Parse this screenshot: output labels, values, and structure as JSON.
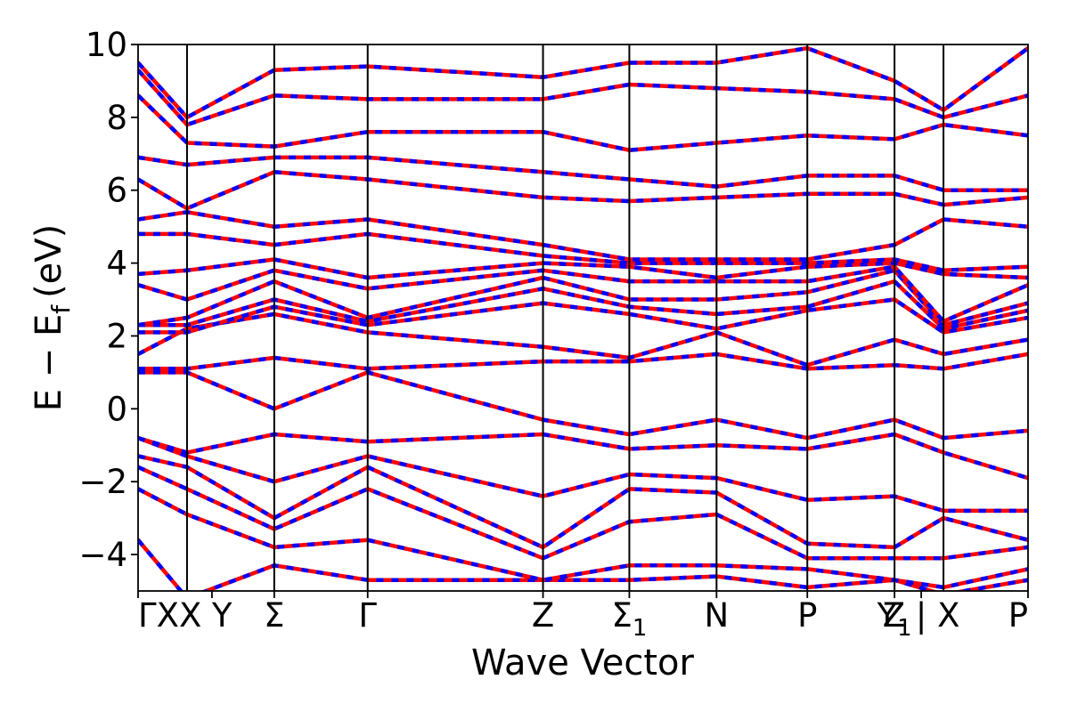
{
  "chart_data": {
    "type": "line",
    "title": "",
    "xlabel": "Wave Vector",
    "ylabel_main": "E − E",
    "ylabel_sub": "f",
    "ylabel_unit": "(eV)",
    "ylim": [
      -5,
      10
    ],
    "yticks": [
      -4,
      -2,
      0,
      2,
      4,
      6,
      8,
      10
    ],
    "ytick_labels": [
      "−4",
      "−2",
      "0",
      "2",
      "4",
      "6",
      "8",
      "10"
    ],
    "xlim": [
      0,
      1
    ],
    "kpoints": [
      {
        "label": "ΓXX",
        "x": 0.0,
        "anchor": "start"
      },
      {
        "label": "Y",
        "x": 0.083,
        "anchor": "start"
      },
      {
        "label": "Σ",
        "x": 0.153
      },
      {
        "label": "Γ",
        "x": 0.258
      },
      {
        "label": "Z",
        "x": 0.455
      },
      {
        "label": "Σ",
        "sub": "1",
        "x": 0.552
      },
      {
        "label": "N",
        "x": 0.65
      },
      {
        "label": "P",
        "x": 0.752
      },
      {
        "label": "Y",
        "sub": "1",
        "x": 0.85
      },
      {
        "label": "Z | X",
        "x": 0.88
      },
      {
        "label": "P",
        "x": 1.0
      }
    ],
    "vlines_x": [
      0.055,
      0.153,
      0.258,
      0.455,
      0.552,
      0.65,
      0.752,
      0.85,
      0.905
    ],
    "breaks_x": [
      0.055,
      0.905
    ],
    "segment_x": [
      0.0,
      0.055,
      0.153,
      0.258,
      0.455,
      0.552,
      0.65,
      0.752,
      0.85,
      0.905,
      1.0
    ],
    "series": [
      {
        "color": "#ff0000",
        "dash_color": "#0000ff",
        "bands": [
          [
            -3.6,
            -5.2,
            -4.3,
            -4.7,
            -4.7,
            -4.7,
            -4.6,
            -4.9,
            -4.7,
            -5.1,
            -4.7
          ],
          [
            -2.2,
            -2.9,
            -3.8,
            -3.6,
            -4.7,
            -4.3,
            -4.3,
            -4.4,
            -4.7,
            -4.9,
            -4.4
          ],
          [
            -1.6,
            -2.2,
            -3.3,
            -2.2,
            -4.1,
            -3.1,
            -2.9,
            -4.1,
            -4.1,
            -4.1,
            -3.8
          ],
          [
            -1.3,
            -1.6,
            -3.0,
            -1.6,
            -3.8,
            -2.2,
            -2.3,
            -3.7,
            -3.8,
            -3.0,
            -3.6
          ],
          [
            -0.8,
            -1.3,
            -2.0,
            -1.3,
            -2.4,
            -1.8,
            -1.9,
            -2.5,
            -2.4,
            -2.8,
            -2.8
          ],
          [
            -0.8,
            -1.2,
            -0.7,
            -0.9,
            -0.7,
            -1.1,
            -1.0,
            -1.1,
            -0.7,
            -1.2,
            -1.9
          ],
          [
            1.0,
            1.0,
            0.0,
            1.0,
            -0.3,
            -0.7,
            -0.3,
            -0.8,
            -0.3,
            -0.8,
            -0.6
          ],
          [
            1.1,
            1.1,
            1.4,
            1.1,
            1.3,
            1.3,
            1.5,
            1.1,
            1.2,
            1.1,
            1.5
          ],
          [
            1.5,
            2.2,
            2.6,
            2.1,
            1.7,
            1.4,
            2.1,
            1.2,
            1.9,
            1.5,
            1.9
          ],
          [
            2.1,
            2.1,
            2.8,
            2.3,
            2.9,
            2.6,
            2.2,
            2.7,
            3.0,
            2.1,
            2.5
          ],
          [
            2.3,
            2.3,
            3.0,
            2.4,
            3.3,
            2.8,
            2.6,
            2.8,
            3.5,
            2.2,
            2.7
          ],
          [
            2.3,
            2.5,
            3.5,
            2.5,
            3.6,
            3.0,
            3.0,
            3.2,
            3.8,
            2.3,
            2.9
          ],
          [
            3.4,
            3.0,
            3.8,
            3.3,
            3.8,
            3.5,
            3.5,
            3.5,
            3.9,
            2.4,
            3.4
          ],
          [
            3.7,
            3.8,
            4.1,
            3.6,
            4.0,
            3.9,
            3.6,
            3.9,
            4.0,
            3.7,
            3.6
          ],
          [
            4.8,
            4.8,
            4.5,
            4.8,
            4.2,
            4.0,
            4.0,
            4.0,
            4.1,
            3.8,
            3.9
          ],
          [
            5.2,
            5.4,
            5.0,
            5.2,
            4.5,
            4.1,
            4.1,
            4.1,
            4.5,
            5.2,
            5.0
          ],
          [
            6.3,
            5.5,
            6.5,
            6.3,
            5.8,
            5.7,
            5.8,
            5.9,
            5.9,
            5.6,
            5.8
          ],
          [
            6.9,
            6.7,
            6.9,
            6.9,
            6.5,
            6.3,
            6.1,
            6.4,
            6.4,
            6.0,
            6.0
          ],
          [
            8.6,
            7.3,
            7.2,
            7.6,
            7.6,
            7.1,
            7.3,
            7.5,
            7.4,
            7.8,
            7.5
          ],
          [
            9.3,
            7.8,
            8.6,
            8.5,
            8.5,
            8.9,
            8.8,
            8.7,
            8.5,
            8.0,
            8.6
          ],
          [
            9.5,
            8.0,
            9.3,
            9.4,
            9.1,
            9.5,
            9.5,
            9.9,
            9.0,
            8.2,
            9.9
          ]
        ]
      }
    ]
  }
}
